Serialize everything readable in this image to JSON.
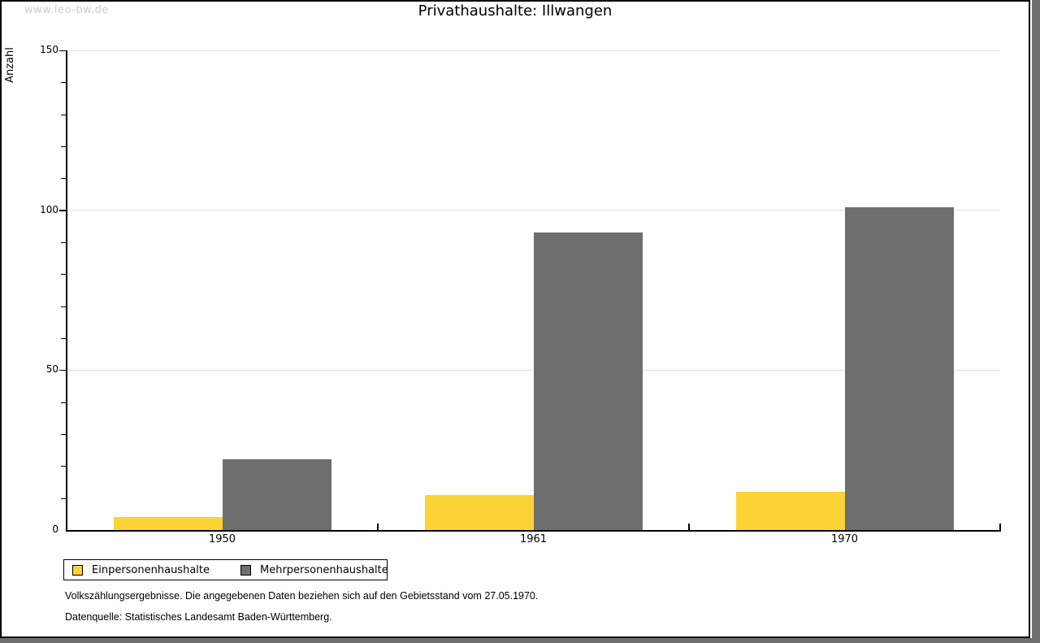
{
  "watermark": "www.leo-bw.de",
  "title": "Privathaushalte: Illwangen",
  "chart_data": {
    "type": "bar",
    "title": "Privathaushalte: Illwangen",
    "categories": [
      "1950",
      "1961",
      "1970"
    ],
    "series": [
      {
        "name": "Einpersonenhaushalte",
        "color": "#FBD335",
        "values": [
          4,
          11,
          12
        ]
      },
      {
        "name": "Mehrpersonenhaushalte",
        "color": "#6E6E6E",
        "values": [
          22,
          93,
          101
        ]
      }
    ],
    "xlabel": "",
    "ylabel": "Anzahl",
    "ylim": [
      0,
      150
    ],
    "yticks_major": [
      0,
      50,
      100,
      150
    ],
    "ytick_minor_step": 10,
    "grid": true,
    "legend_position": "bottom-left"
  },
  "footnotes": [
    "Volkszählungsergebnisse. Die angegebenen Daten beziehen sich auf den Gebietsstand vom 27.05.1970.",
    "Datenquelle: Statistisches Landesamt Baden-Württemberg."
  ],
  "colors": {
    "series_1": "#FBD335",
    "series_2": "#6E6E6E",
    "gridline": "#e0e0e0",
    "watermark": "#cccccc",
    "shadow": "#6e6e6e"
  }
}
